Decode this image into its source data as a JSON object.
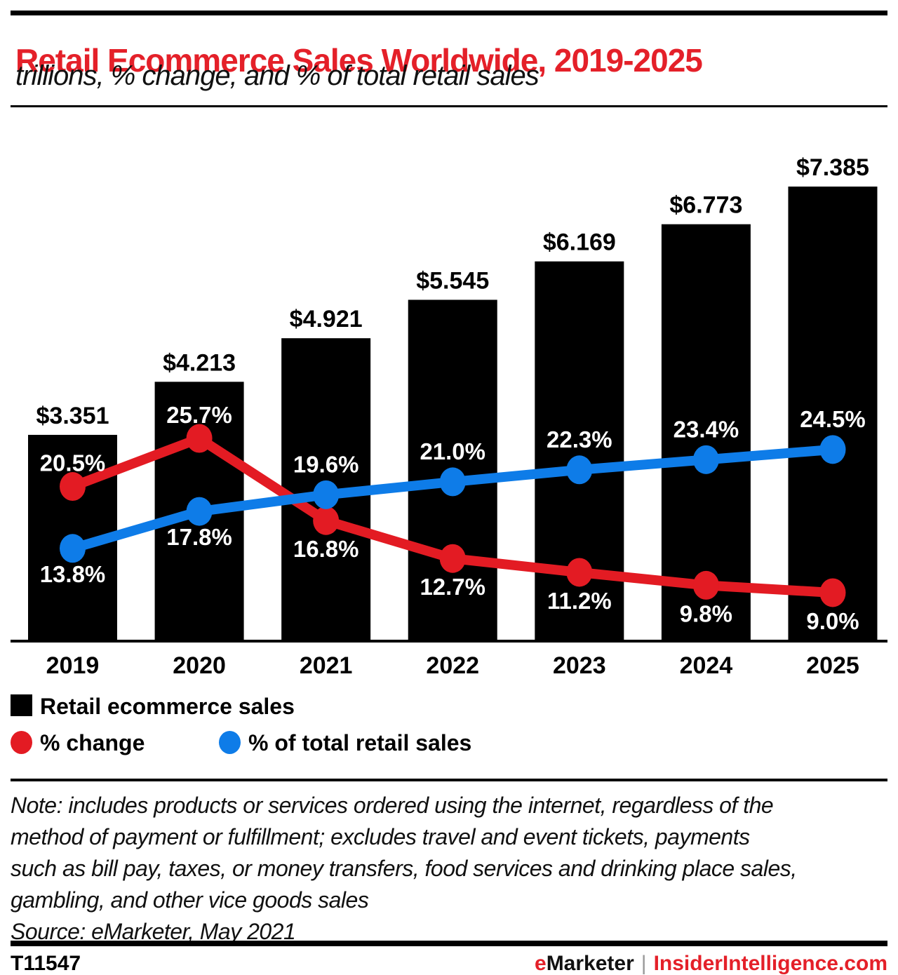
{
  "header": {
    "title": "Retail Ecommerce Sales Worldwide, 2019-2025",
    "subtitle": "trillions, % change, and % of total retail sales"
  },
  "chart_data": {
    "type": "bar+line combo",
    "categories": [
      "2019",
      "2020",
      "2021",
      "2022",
      "2023",
      "2024",
      "2025"
    ],
    "series": [
      {
        "name": "Retail ecommerce sales",
        "type": "bar",
        "unit": "$ trillions",
        "values": [
          3.351,
          4.213,
          4.921,
          5.545,
          6.169,
          6.773,
          7.385
        ],
        "labels": [
          "$3.351",
          "$4.213",
          "$4.921",
          "$5.545",
          "$6.169",
          "$6.773",
          "$7.385"
        ],
        "color": "#000000"
      },
      {
        "name": "% change",
        "type": "line",
        "values": [
          20.5,
          25.7,
          16.8,
          12.7,
          11.2,
          9.8,
          9.0
        ],
        "labels": [
          "20.5%",
          "25.7%",
          "16.8%",
          "12.7%",
          "11.2%",
          "9.8%",
          "9.0%"
        ],
        "color": "#e31b23"
      },
      {
        "name": "% of total retail sales",
        "type": "line",
        "values": [
          13.8,
          17.8,
          19.6,
          21.0,
          22.3,
          23.4,
          24.5
        ],
        "labels": [
          "13.8%",
          "17.8%",
          "19.6%",
          "21.0%",
          "22.3%",
          "23.4%",
          "24.5%"
        ],
        "color": "#0e7ce8"
      }
    ],
    "title": "Retail Ecommerce Sales Worldwide, 2019-2025",
    "xlabel": "",
    "ylabel": "",
    "grid": false,
    "legend_position": "bottom-left",
    "value_axis_shown": false
  },
  "legend": {
    "bar_label": "Retail ecommerce sales",
    "pct_change_label": "% change",
    "pct_of_retail_label": "% of total retail sales"
  },
  "note": {
    "lines": [
      "Note: includes products or services ordered using the internet, regardless of the",
      "method of payment or fulfillment; excludes travel and event tickets, payments",
      "such as bill pay, taxes, or money transfers, food services and drinking place sales,",
      "gambling, and other vice goods sales"
    ],
    "source": "Source: eMarketer, May 2021"
  },
  "footer": {
    "chart_id": "T11547",
    "brand_first_letter": "e",
    "brand_rest": "Marketer",
    "separator": "|",
    "site": "InsiderIntelligence.com"
  },
  "colors": {
    "accent_red": "#e42029",
    "line_red": "#e31b23",
    "line_blue": "#0e7ce8",
    "bar_black": "#000000",
    "label_white": "#ffffff"
  }
}
